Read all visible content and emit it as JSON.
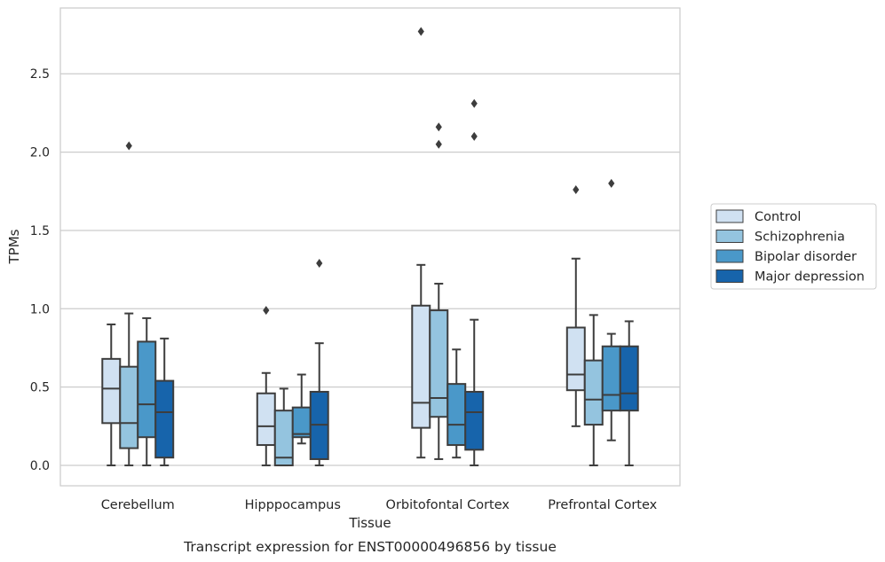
{
  "chart_data": {
    "type": "boxplot",
    "caption": "Transcript expression for ENST00000496856 by tissue",
    "xlabel": "Tissue",
    "ylabel": "TPMs",
    "ylim": [
      -0.13,
      2.92
    ],
    "yticks": [
      0.0,
      0.5,
      1.0,
      1.5,
      2.0,
      2.5
    ],
    "ytick_labels": [
      "0.0",
      "0.5",
      "1.0",
      "1.5",
      "2.0",
      "2.5"
    ],
    "grid": true,
    "legend_position": "right",
    "categories": [
      "Cerebellum",
      "Hipppocampus",
      "Orbitofontal Cortex",
      "Prefrontal Cortex"
    ],
    "series": [
      {
        "name": "Control",
        "color": "#d0e1f2",
        "boxes": [
          {
            "whislo": 0.0,
            "q1": 0.27,
            "med": 0.49,
            "q3": 0.68,
            "whishi": 0.9,
            "fliers": []
          },
          {
            "whislo": 0.0,
            "q1": 0.13,
            "med": 0.25,
            "q3": 0.46,
            "whishi": 0.59,
            "fliers": [
              0.99
            ]
          },
          {
            "whislo": 0.05,
            "q1": 0.24,
            "med": 0.4,
            "q3": 1.02,
            "whishi": 1.28,
            "fliers": [
              2.77
            ]
          },
          {
            "whislo": 0.25,
            "q1": 0.48,
            "med": 0.58,
            "q3": 0.88,
            "whishi": 1.32,
            "fliers": [
              1.76
            ]
          }
        ]
      },
      {
        "name": "Schizophrenia",
        "color": "#94c4df",
        "boxes": [
          {
            "whislo": 0.0,
            "q1": 0.11,
            "med": 0.27,
            "q3": 0.63,
            "whishi": 0.97,
            "fliers": [
              2.04
            ]
          },
          {
            "whislo": 0.0,
            "q1": 0.0,
            "med": 0.05,
            "q3": 0.35,
            "whishi": 0.49,
            "fliers": []
          },
          {
            "whislo": 0.04,
            "q1": 0.31,
            "med": 0.43,
            "q3": 0.99,
            "whishi": 1.16,
            "fliers": [
              2.16,
              2.05
            ]
          },
          {
            "whislo": 0.0,
            "q1": 0.26,
            "med": 0.42,
            "q3": 0.67,
            "whishi": 0.96,
            "fliers": []
          }
        ]
      },
      {
        "name": "Bipolar disorder",
        "color": "#4a98c9",
        "boxes": [
          {
            "whislo": 0.0,
            "q1": 0.18,
            "med": 0.39,
            "q3": 0.79,
            "whishi": 0.94,
            "fliers": []
          },
          {
            "whislo": 0.14,
            "q1": 0.18,
            "med": 0.2,
            "q3": 0.37,
            "whishi": 0.58,
            "fliers": []
          },
          {
            "whislo": 0.05,
            "q1": 0.13,
            "med": 0.26,
            "q3": 0.52,
            "whishi": 0.74,
            "fliers": []
          },
          {
            "whislo": 0.16,
            "q1": 0.35,
            "med": 0.45,
            "q3": 0.76,
            "whishi": 0.84,
            "fliers": [
              1.8
            ]
          }
        ]
      },
      {
        "name": "Major depression",
        "color": "#1764ab",
        "boxes": [
          {
            "whislo": 0.0,
            "q1": 0.05,
            "med": 0.34,
            "q3": 0.54,
            "whishi": 0.81,
            "fliers": []
          },
          {
            "whislo": 0.0,
            "q1": 0.04,
            "med": 0.26,
            "q3": 0.47,
            "whishi": 0.78,
            "fliers": [
              1.29
            ]
          },
          {
            "whislo": 0.0,
            "q1": 0.1,
            "med": 0.34,
            "q3": 0.47,
            "whishi": 0.93,
            "fliers": [
              2.31,
              2.1
            ]
          },
          {
            "whislo": 0.0,
            "q1": 0.35,
            "med": 0.46,
            "q3": 0.76,
            "whishi": 0.92,
            "fliers": []
          }
        ]
      }
    ]
  }
}
